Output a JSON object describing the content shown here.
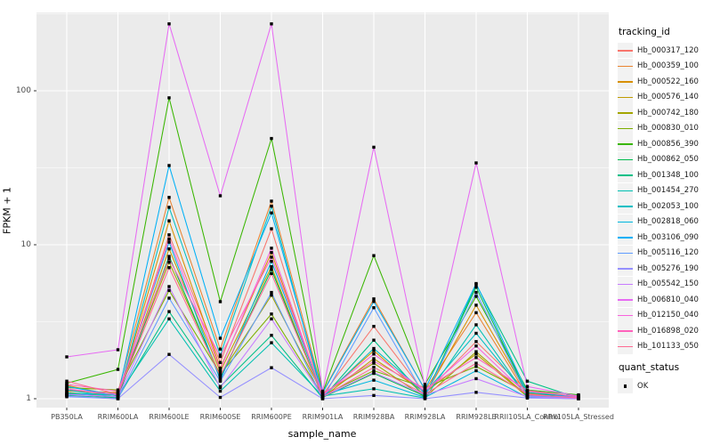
{
  "chart_data": {
    "type": "line",
    "title": "",
    "xlabel": "sample_name",
    "ylabel": "FPKM + 1",
    "y_scale": "log10",
    "y_ticks": [
      1,
      10,
      100
    ],
    "y_tick_labels": [
      "1",
      "10",
      "100"
    ],
    "ylim": [
      0.87,
      320
    ],
    "grid": "on",
    "legend_position": "right",
    "point_shape": "square",
    "point_color": "#000000",
    "panel_background": "#ebebeb",
    "grid_color": "#ffffff",
    "categories": [
      "PB350LA",
      "RRIM600LA",
      "RRIM600LE",
      "RRIM600SE",
      "RRIM600PE",
      "RRIM901LA",
      "RRIM928BA",
      "RRIM928LA",
      "RRIM928LE",
      "RRII105LA_Control",
      "RRII105LA_Stressed"
    ],
    "series": [
      {
        "name": "Hb_000317_120",
        "color": "#F8766D",
        "values": [
          1.15,
          1.05,
          11.6,
          1.72,
          12.7,
          1.06,
          2.95,
          1.08,
          2.35,
          1.12,
          1.02
        ]
      },
      {
        "name": "Hb_000359_100",
        "color": "#EA8331",
        "values": [
          1.12,
          1.1,
          20.3,
          2.1,
          19.2,
          1.1,
          4.45,
          1.14,
          3.62,
          1.05,
          1.03
        ]
      },
      {
        "name": "Hb_000522_160",
        "color": "#D89000",
        "values": [
          1.22,
          1.04,
          14.3,
          1.58,
          8.9,
          1.04,
          2.05,
          1.05,
          4.05,
          1.08,
          1.02
        ]
      },
      {
        "name": "Hb_000576_140",
        "color": "#C09B00",
        "values": [
          1.1,
          1.02,
          9.4,
          1.5,
          7.2,
          1.02,
          1.82,
          1.1,
          1.95,
          1.03,
          1.01
        ]
      },
      {
        "name": "Hb_000742_180",
        "color": "#A3A500",
        "values": [
          1.06,
          1.09,
          7.7,
          1.42,
          4.7,
          1.08,
          1.7,
          1.02,
          2.02,
          1.04,
          1.02
        ]
      },
      {
        "name": "Hb_000830_010",
        "color": "#7CAE00",
        "values": [
          1.18,
          1.14,
          5.05,
          1.45,
          3.55,
          1.05,
          1.52,
          1.18,
          1.62,
          1.09,
          1.04
        ]
      },
      {
        "name": "Hb_000856_390",
        "color": "#39B600",
        "values": [
          1.26,
          1.55,
          90,
          4.27,
          49,
          1.1,
          8.5,
          1.24,
          4.62,
          1.14,
          1.06
        ]
      },
      {
        "name": "Hb_000862_050",
        "color": "#00BB4E",
        "values": [
          1.08,
          1.02,
          8.4,
          1.36,
          6.9,
          1.02,
          1.46,
          1.04,
          5.3,
          1.06,
          1.05
        ]
      },
      {
        "name": "Hb_001348_100",
        "color": "#00C087",
        "values": [
          1.05,
          1.01,
          3.68,
          1.2,
          2.58,
          1.01,
          2.4,
          1.02,
          5.52,
          1.3,
          1.01
        ]
      },
      {
        "name": "Hb_001454_270",
        "color": "#00C0B2",
        "values": [
          1.09,
          1.05,
          3.3,
          1.12,
          2.31,
          1.04,
          1.16,
          1.01,
          3.02,
          1.02,
          1.01
        ]
      },
      {
        "name": "Hb_002053_100",
        "color": "#00BFC4",
        "values": [
          1.14,
          1.02,
          17.5,
          1.92,
          17.8,
          1.02,
          2.12,
          1.09,
          2.66,
          1.04,
          1.01
        ]
      },
      {
        "name": "Hb_002818_060",
        "color": "#00B7E0",
        "values": [
          1.06,
          1.08,
          10.4,
          1.32,
          7.8,
          1.06,
          1.32,
          1.02,
          1.52,
          1.02,
          1.0
        ]
      },
      {
        "name": "Hb_003106_090",
        "color": "#00B0F6",
        "values": [
          1.2,
          1.05,
          32.7,
          2.47,
          16.1,
          1.09,
          4.28,
          1.15,
          5.6,
          1.1,
          1.02
        ]
      },
      {
        "name": "Hb_005116_120",
        "color": "#619CFF",
        "values": [
          1.03,
          1.0,
          4.5,
          1.3,
          4.9,
          1.0,
          3.9,
          1.03,
          4.9,
          1.04,
          1.01
        ]
      },
      {
        "name": "Hb_005276_190",
        "color": "#9590FF",
        "values": [
          1.04,
          1.0,
          1.94,
          1.02,
          1.59,
          1.0,
          1.05,
          1.0,
          1.1,
          1.01,
          1.0
        ]
      },
      {
        "name": "Hb_005542_150",
        "color": "#C77CFF",
        "values": [
          1.07,
          1.03,
          5.35,
          1.18,
          3.3,
          1.03,
          1.48,
          1.06,
          1.35,
          1.03,
          1.0
        ]
      },
      {
        "name": "Hb_006810_040",
        "color": "#E76BF3",
        "values": [
          1.87,
          2.08,
          272,
          20.8,
          272,
          1.12,
          43,
          1.2,
          34,
          1.2,
          1.04
        ]
      },
      {
        "name": "Hb_012150_040",
        "color": "#F962DD",
        "values": [
          1.16,
          1.06,
          10.9,
          1.55,
          9.5,
          1.05,
          1.95,
          1.12,
          2.2,
          1.06,
          1.02
        ]
      },
      {
        "name": "Hb_016898_020",
        "color": "#FF62BC",
        "values": [
          1.24,
          1.12,
          8.1,
          1.88,
          8.3,
          1.08,
          1.75,
          1.16,
          1.85,
          1.13,
          1.03
        ]
      },
      {
        "name": "Hb_101133_050",
        "color": "#FF6A92",
        "values": [
          1.3,
          1.07,
          7.1,
          1.4,
          6.5,
          1.03,
          1.6,
          1.07,
          1.7,
          1.07,
          1.01
        ]
      }
    ]
  },
  "legend": {
    "tracking_title": "tracking_id",
    "quant_title": "quant_status",
    "quant_items": [
      {
        "label": "OK"
      }
    ]
  }
}
